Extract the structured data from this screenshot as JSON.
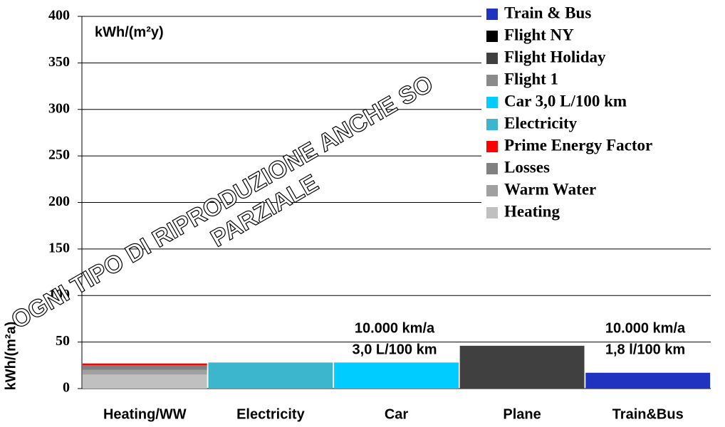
{
  "chart_data": {
    "type": "stacked_bar",
    "unit_label": "kWh/(m²y)",
    "y_label": "kWh/(m²a)",
    "categories": [
      "Heating/WW",
      "Electricity",
      "Car",
      "Plane",
      "Train&Bus"
    ],
    "series": [
      {
        "name": "Train & Bus",
        "color": "#1f33c0",
        "values": [
          null,
          null,
          null,
          null,
          17
        ]
      },
      {
        "name": "Flight NY",
        "color": "#000000",
        "values": [
          null,
          null,
          null,
          null,
          null
        ]
      },
      {
        "name": "Flight Holiday",
        "color": "#404040",
        "values": [
          null,
          null,
          null,
          46,
          null
        ]
      },
      {
        "name": "Flight 1",
        "color": "#8a8a8a",
        "values": [
          null,
          null,
          null,
          null,
          null
        ]
      },
      {
        "name": "Car 3,0 L/100 km",
        "color": "#00ccff",
        "values": [
          null,
          null,
          28,
          null,
          null
        ]
      },
      {
        "name": "Electricity",
        "color": "#3bb6cc",
        "values": [
          null,
          28,
          null,
          null,
          null
        ]
      },
      {
        "name": "Prime Energy Factor",
        "color": "#ff0000",
        "values": [
          2,
          null,
          null,
          null,
          null
        ]
      },
      {
        "name": "Losses",
        "color": "#808080",
        "values": [
          5,
          null,
          null,
          null,
          null
        ]
      },
      {
        "name": "Warm Water",
        "color": "#a0a0a0",
        "values": [
          5,
          null,
          null,
          null,
          null
        ]
      },
      {
        "name": "Heating",
        "color": "#c0c0c0",
        "values": [
          15,
          null,
          null,
          null,
          null
        ]
      }
    ],
    "annotations": [
      "10.000 km/a",
      "3,0 L/100 km",
      "10.000 km/a",
      "1,8 l/100 km"
    ],
    "watermark": [
      "OGNI TIPO DI RIPRODUZIONE ANCHE SO",
      "PARZIALE"
    ],
    "ylim": [
      0,
      400
    ],
    "yticks": [
      0,
      50,
      100,
      150,
      200,
      250,
      300,
      350,
      400
    ],
    "grid": true
  }
}
